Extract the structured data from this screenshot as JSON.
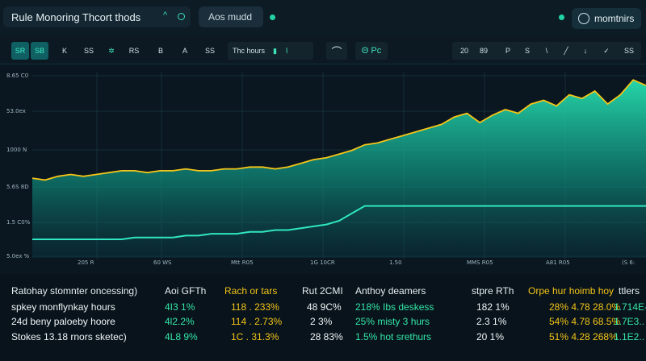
{
  "topbar": {
    "title": "Rule Monoring Thcort thods",
    "title_chevron": "^",
    "search_text": "Aos mudd",
    "user_label": "momtnirs"
  },
  "toolbar": {
    "buttons": [
      "SR",
      "SB",
      "K",
      "SS",
      "RS",
      "B",
      "A",
      "SS"
    ],
    "time_label": "Thc hours",
    "pen_label": "P",
    "mode_label": "Θ Pc",
    "right_buttons": [
      "20",
      "89",
      "P",
      "S",
      "\\",
      "╱",
      "↓",
      "✓",
      "SS"
    ]
  },
  "chart_data": {
    "type": "area",
    "y_ticks": [
      "8.65 C0",
      "53.0ex",
      "1000 N",
      "5.6S 8D",
      "1.5 C0%",
      "5.0ex %"
    ],
    "x_ticks": [
      "205 R",
      "60 WS",
      "Mtt R05",
      "1G 10CR",
      "1.50",
      "MMS R05",
      "A81 R05",
      "(S 6:"
    ],
    "series": [
      {
        "color": "#f5c518",
        "values": [
          0.43,
          0.42,
          0.44,
          0.45,
          0.44,
          0.45,
          0.46,
          0.47,
          0.47,
          0.46,
          0.47,
          0.47,
          0.48,
          0.47,
          0.47,
          0.48,
          0.48,
          0.49,
          0.49,
          0.48,
          0.49,
          0.51,
          0.53,
          0.54,
          0.56,
          0.58,
          0.61,
          0.62,
          0.64,
          0.66,
          0.68,
          0.7,
          0.72,
          0.76,
          0.78,
          0.73,
          0.77,
          0.8,
          0.78,
          0.83,
          0.85,
          0.82,
          0.88,
          0.86,
          0.9,
          0.83,
          0.88,
          0.96,
          0.93
        ],
        "fill_color": "#1fc9a0"
      },
      {
        "color": "#2fe6c0",
        "values": [
          0.1,
          0.1,
          0.1,
          0.1,
          0.1,
          0.1,
          0.1,
          0.1,
          0.11,
          0.11,
          0.11,
          0.11,
          0.12,
          0.12,
          0.13,
          0.13,
          0.13,
          0.14,
          0.14,
          0.15,
          0.15,
          0.16,
          0.17,
          0.18,
          0.2,
          0.24,
          0.28,
          0.28,
          0.28,
          0.28,
          0.28,
          0.28,
          0.28,
          0.28,
          0.28,
          0.28,
          0.28,
          0.28,
          0.28,
          0.28,
          0.28,
          0.28,
          0.28,
          0.28,
          0.28,
          0.28,
          0.28,
          0.28,
          0.28
        ]
      }
    ]
  },
  "table": {
    "rows": [
      [
        "Ratohay stomnter oncessing)",
        "Aoi GFTh",
        "Rach or tars",
        "Rut 2CMI",
        "Anthoy deamers",
        "stpre RTh",
        "Orpe hur hoimb hoy",
        "ttlers"
      ],
      [
        "spkey monflynkay hours",
        "4I3 1%",
        "118 . 233%",
        "48 9C%",
        "218% Ibs deskess",
        "182 1%",
        "28% 4.78 28.0%",
        "1.714E-"
      ],
      [
        "24d beny paloeby hoore",
        "4l2.2%",
        "114 . 2.73%",
        "2 3%",
        "25% misty 3 hurs",
        "2.3 1%",
        "54% 4.78 68.5%",
        "1.7E3.."
      ],
      [
        "Stokes 13.18 rnors sketec)",
        "4L8 9%",
        "1C . 31.3%",
        "28 83%",
        "1.5% hot srethurs",
        "20 1%",
        "51% 4.28 268%",
        "1.1E2.."
      ]
    ]
  },
  "colors": {
    "accent": "#1fc9a0",
    "highlight": "#f5c518",
    "background": "#0a1620"
  }
}
